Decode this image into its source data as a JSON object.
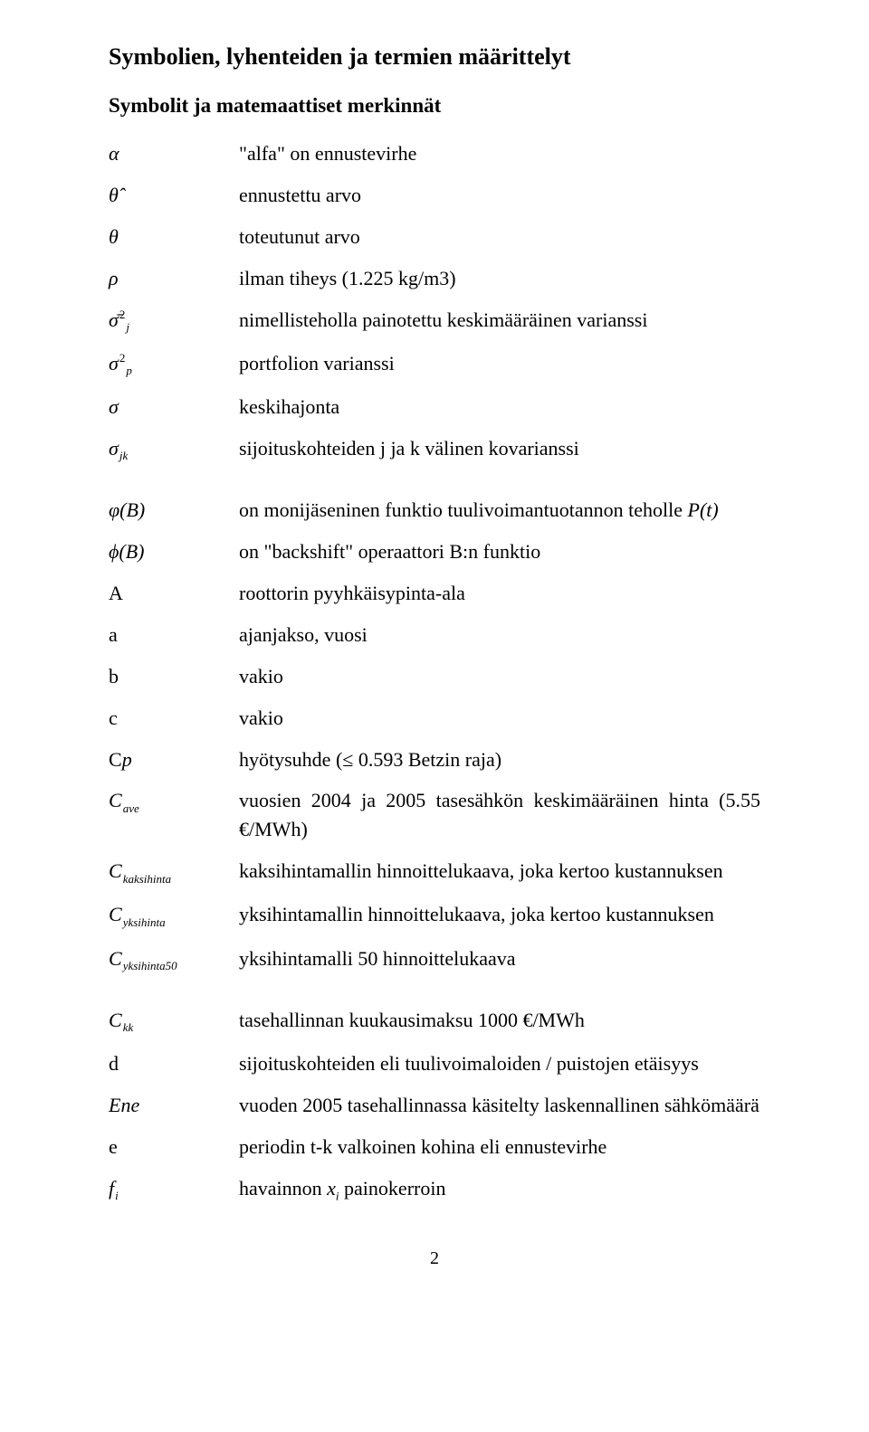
{
  "heading": "Symbolien, lyhenteiden ja termien määrittelyt",
  "subheading": "Symbolit ja matemaattiset merkinnät",
  "rows": [
    {
      "symHtml": "α",
      "descHtml": "\"alfa\" on ennustevirhe"
    },
    {
      "symHtml": "θ̂",
      "descHtml": "ennustettu arvo"
    },
    {
      "symHtml": "θ",
      "descHtml": "toteutunut arvo"
    },
    {
      "symHtml": "ρ",
      "descHtml": "ilman tiheys (1.225 kg/m3)"
    },
    {
      "symHtml": "σ̄<span class='sup'>2</span><span class='sub'>j</span>",
      "descHtml": "nimellisteholla painotettu keskimääräinen varianssi"
    },
    {
      "symHtml": "σ<span class='sup'>2</span><span class='sub'>p</span>",
      "descHtml": "portfolion varianssi"
    },
    {
      "symHtml": "σ",
      "descHtml": "keskihajonta"
    },
    {
      "symHtml": "σ<span class='sub'>jk</span>",
      "descHtml": "sijoituskohteiden j ja k välinen kovarianssi"
    },
    {
      "symHtml": "φ(B)",
      "descHtml": "on monijäseninen funktio tuulivoimantuotannon teholle <span class='it'>P(t)</span>"
    },
    {
      "symHtml": "ϕ(B)",
      "descHtml": "on \"backshift\" operaattori B:n funktio"
    },
    {
      "symHtml": "<span style='font-style:normal'>A</span>",
      "descHtml": "roottorin pyyhkäisypinta-ala"
    },
    {
      "symHtml": "<span style='font-style:normal'>a</span>",
      "descHtml": "ajanjakso, vuosi"
    },
    {
      "symHtml": "<span style='font-style:normal'>b</span>",
      "descHtml": "vakio"
    },
    {
      "symHtml": "<span style='font-style:normal'>c</span>",
      "descHtml": "vakio"
    },
    {
      "symHtml": "<span style='font-style:normal'>C</span><span class='it'>p</span>",
      "descHtml": "hyötysuhde (≤ 0.593 Betzin raja)"
    },
    {
      "symHtml": "C<span class='sub'>ave</span>",
      "descHtml": "vuosien 2004 ja 2005 tasesähkön keskimääräinen hinta (5.55 €/MWh)"
    },
    {
      "symHtml": "C<span class='sub'>kaksihinta</span>",
      "descHtml": "kaksihintamallin hinnoittelukaava, joka kertoo kustannuksen"
    },
    {
      "symHtml": "C<span class='sub'>yksihinta</span>",
      "descHtml": "yksihintamallin hinnoittelukaava, joka kertoo kustannuksen"
    },
    {
      "symHtml": "C<span class='sub'>yksihinta50</span>",
      "descHtml": "yksihintamalli 50 hinnoittelukaava"
    },
    {
      "symHtml": "C<span class='sub'>kk</span>",
      "descHtml": "tasehallinnan kuukausimaksu 1000 €/MWh"
    },
    {
      "symHtml": "<span style='font-style:normal'>d</span>",
      "descHtml": "sijoituskohteiden eli tuulivoimaloiden / puistojen etäisyys"
    },
    {
      "symHtml": "Ene",
      "descHtml": "vuoden 2005 tasehallinnassa käsitelty laskennallinen sähkömäärä"
    },
    {
      "symHtml": "<span style='font-style:normal'>e</span>",
      "descHtml": "periodin t-k valkoinen kohina eli ennustevirhe"
    },
    {
      "symHtml": "f<span class='sub'>i</span>",
      "descHtml": "havainnon <span class='it'>x</span><span class='sub'>i</span> painokerroin"
    }
  ],
  "pageNumber": "2",
  "gapAfterIndices": [
    7,
    18
  ]
}
